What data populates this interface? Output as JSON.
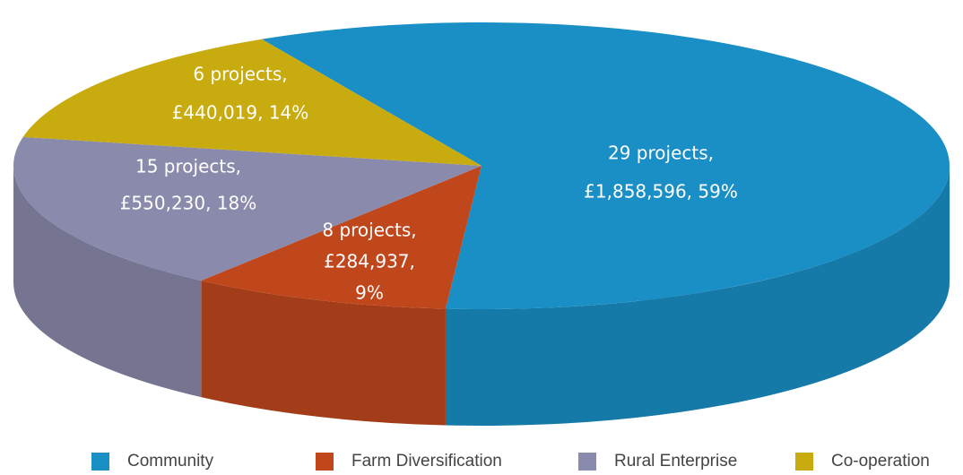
{
  "chart_data": {
    "type": "pie3d",
    "categories": [
      "Community",
      "Farm Diversification",
      "Rural Enterprise",
      "Co-operation"
    ],
    "values": [
      59,
      9,
      18,
      14
    ],
    "value_labels": [
      [
        "29 projects,",
        "£1,858,596, 59%"
      ],
      [
        "8 projects,",
        "£284,937,",
        "9%"
      ],
      [
        "15 projects,",
        "£550,230, 18%"
      ],
      [
        "6 projects,",
        "£440,019, 14%"
      ]
    ],
    "colors": [
      "#1a8fc6",
      "#c0461c",
      "#8a8aac",
      "#c8ab0e"
    ],
    "legend": "bottom"
  }
}
